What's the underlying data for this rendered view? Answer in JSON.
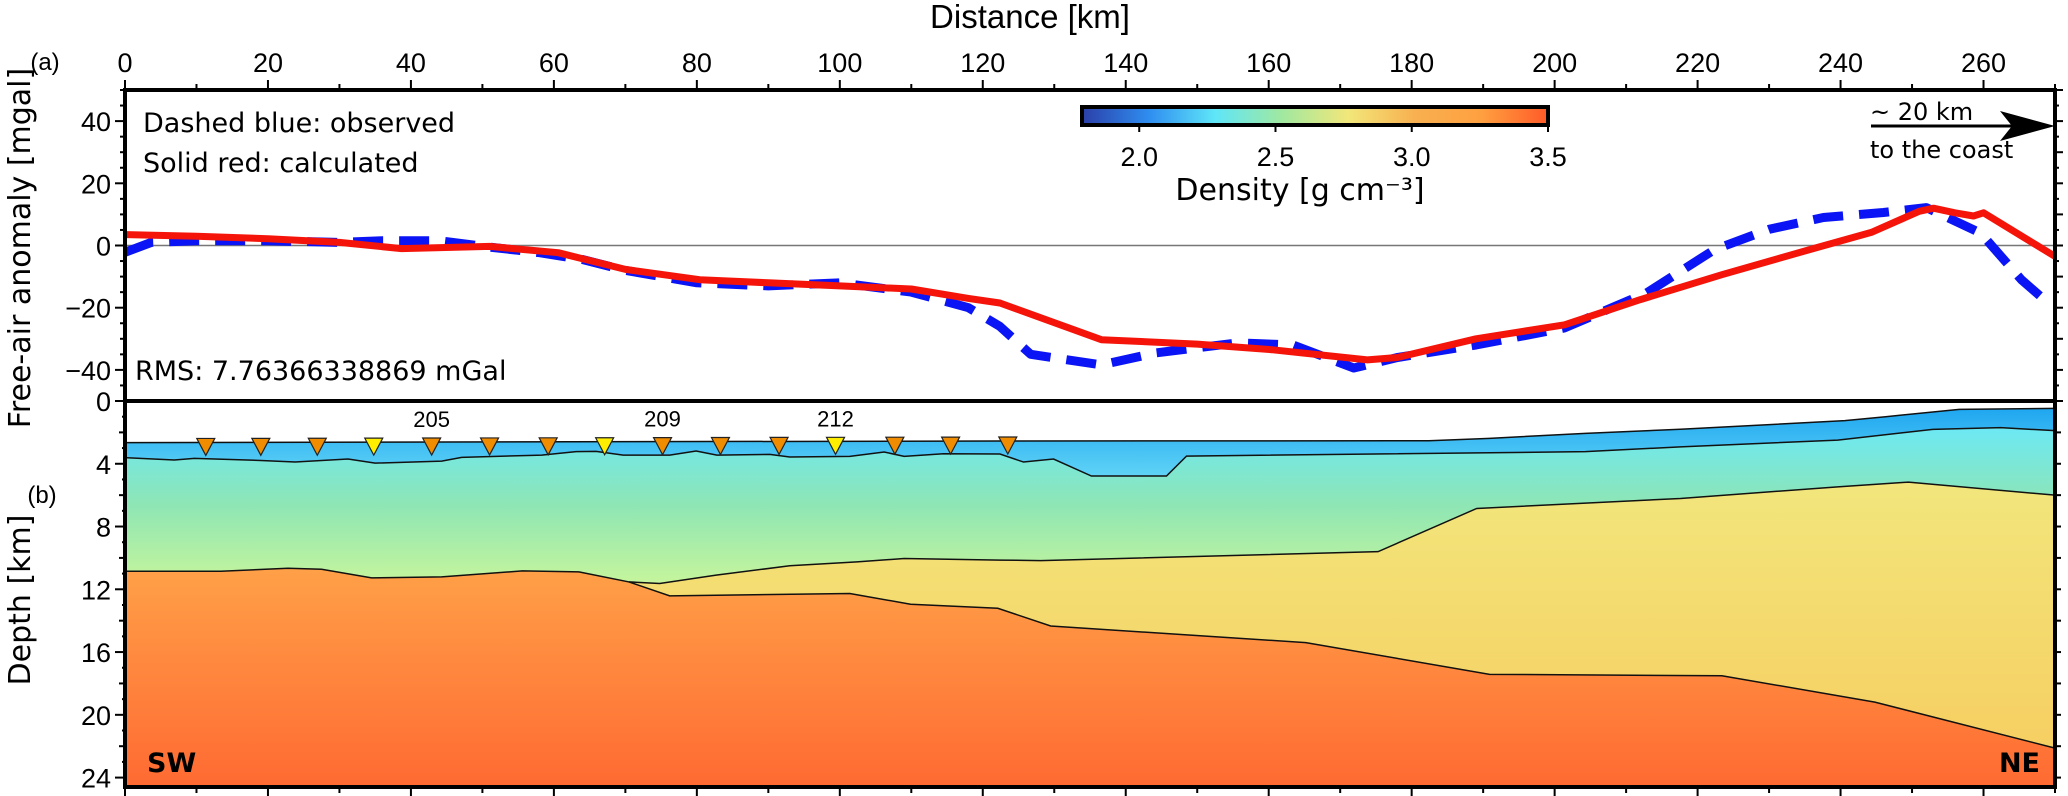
{
  "chart_data": [
    {
      "type": "line",
      "panel_label": "(a)",
      "title": "Distance [km]",
      "xlabel": "Distance [km]",
      "ylabel": "Free-air anomaly [mgal]",
      "xlim": [
        0,
        270
      ],
      "ylim": [
        -50,
        50
      ],
      "xticks": [
        0,
        20,
        40,
        60,
        80,
        100,
        120,
        140,
        160,
        180,
        200,
        220,
        240,
        260
      ],
      "yticks": [
        -40,
        -20,
        0,
        20,
        40
      ],
      "legend": [
        "Dashed blue: observed",
        "Solid red: calculated"
      ],
      "rms_text": "RMS: 7.76366338869 mGal",
      "coast_note": {
        "line1": "~ 20 km",
        "line2": "to the coast"
      },
      "series": [
        {
          "name": "observed",
          "color": "#0a14f5",
          "style": "dashed",
          "x": [
            0,
            3.7,
            10,
            20,
            30,
            36,
            44,
            51,
            58,
            64,
            70,
            80,
            90,
            100,
            110,
            118,
            122.4,
            126.7,
            136.6,
            144.3,
            155.7,
            163.4,
            171.9,
            178,
            189,
            201.4,
            212.9,
            222.4,
            230,
            237.6,
            246,
            252,
            259.6,
            265.3,
            268,
            270
          ],
          "y": [
            -2.2,
            1,
            1.5,
            1.5,
            1,
            1.5,
            1.5,
            -0.5,
            -2.3,
            -4.5,
            -8,
            -12,
            -13,
            -12,
            -15,
            -20,
            -26,
            -35,
            -38.4,
            -34.5,
            -31.3,
            -32,
            -39.4,
            -36,
            -32,
            -26.5,
            -15.2,
            -1.3,
            5.2,
            9,
            10.6,
            12.2,
            4,
            -11,
            -16.4,
            -17
          ]
        },
        {
          "name": "calculated",
          "color": "#f5140a",
          "style": "solid",
          "x": [
            0,
            10,
            20,
            30,
            38.7,
            51,
            60.6,
            70,
            80.4,
            90,
            100,
            110,
            118,
            122.4,
            136.6,
            150,
            160.4,
            173.8,
            178,
            189,
            201.4,
            212,
            223.4,
            236.6,
            244.3,
            251,
            253,
            256,
            258.6,
            260,
            270
          ],
          "y": [
            3.5,
            3,
            2.2,
            1,
            -1,
            -0.3,
            -2.3,
            -7.7,
            -11,
            -12,
            -13,
            -14,
            -17,
            -18.5,
            -30.3,
            -31.7,
            -33.5,
            -36.8,
            -36,
            -30,
            -25.5,
            -17.4,
            -9.4,
            -0.7,
            4.2,
            11,
            12,
            10.5,
            9.5,
            10.5,
            -3.5
          ]
        }
      ]
    },
    {
      "type": "area",
      "panel_label": "(b)",
      "ylabel": "Depth [km]",
      "xlim": [
        0,
        270
      ],
      "ylim": [
        0,
        24.6
      ],
      "yticks": [
        0,
        4,
        8,
        12,
        16,
        20,
        24
      ],
      "left_label": "SW",
      "right_label": "NE",
      "colorbar": {
        "label": "Density [g cm⁻³]",
        "range": [
          1.79,
          3.5
        ],
        "ticks": [
          "2.0",
          "2.5",
          "3.0",
          "3.5"
        ],
        "tick_values": [
          2.0,
          2.5,
          3.0,
          3.5
        ]
      },
      "boundaries": {
        "seafloor": {
          "x": [
            0,
            122.4,
            182.4,
            190.9,
            204.3,
            217.6,
            240.6,
            246.3,
            256.6,
            270
          ],
          "d": [
            2.65,
            2.55,
            2.53,
            2.38,
            2.06,
            1.8,
            1.25,
            1.0,
            0.53,
            0.47
          ]
        },
        "layer1_base": {
          "x": [
            0,
            6.9,
            9.7,
            19,
            23.8,
            31.2,
            35,
            44.3,
            47.1,
            58.3,
            63.1,
            65.9,
            69.7,
            76.2,
            79.9,
            82.8,
            90.2,
            93,
            101.4,
            106.2,
            109,
            114.5,
            122.4,
            125.7,
            129.9,
            135.2,
            145.7,
            148.5,
            204.3,
            217.6,
            239.6,
            252.9,
            262.4,
            270
          ],
          "d": [
            3.61,
            3.76,
            3.66,
            3.79,
            3.89,
            3.7,
            3.96,
            3.83,
            3.59,
            3.45,
            3.23,
            3.21,
            3.45,
            3.45,
            3.19,
            3.45,
            3.4,
            3.57,
            3.53,
            3.25,
            3.53,
            3.36,
            3.38,
            3.89,
            3.7,
            4.78,
            4.78,
            3.51,
            3.23,
            2.92,
            2.49,
            1.81,
            1.7,
            1.89
          ]
        },
        "upper_crust_top": {
          "x": [
            70.5,
            74.8,
            82.7,
            93,
            102.4,
            109,
            122.4,
            128.1,
            175.3,
            189.1,
            217.6,
            239.6,
            249.5,
            270
          ],
          "d": [
            11.53,
            11.63,
            11.1,
            10.5,
            10.25,
            10.04,
            10.14,
            10.17,
            9.6,
            6.85,
            6.21,
            5.47,
            5.17,
            6.0
          ]
        },
        "lower_crust_top": {
          "x": [
            0,
            13.4,
            22.8,
            27.5,
            34.5,
            44.3,
            55.6,
            63.5,
            70.5,
            76.2,
            101.4,
            109.9,
            122.1,
            129.5,
            165.2,
            190.9,
            223.4,
            244.8,
            270
          ],
          "d": [
            10.85,
            10.85,
            10.66,
            10.72,
            11.27,
            11.21,
            10.83,
            10.89,
            11.53,
            12.42,
            12.27,
            12.95,
            13.21,
            14.34,
            15.4,
            17.42,
            17.51,
            19.19,
            22.12
          ]
        }
      },
      "layer_colors": {
        "layer1": [
          "#1fa6f0",
          "#5fd3f6"
        ],
        "layer2": [
          "#6ce8f4",
          "#8ee6b4",
          "#c6f59c"
        ],
        "layer3": [
          "#f2e67c",
          "#f6cf62"
        ],
        "layer4": [
          "#ffa048",
          "#ff6a32"
        ]
      },
      "stations": {
        "x": [
          11.3,
          19,
          26.9,
          34.8,
          42.9,
          51,
          59.2,
          67.1,
          75.2,
          83.3,
          91.5,
          99.4,
          107.7,
          115.5,
          123.5
        ],
        "colors": [
          "#f08c00",
          "#f08c00",
          "#f08c00",
          "#ffee00",
          "#f08c00",
          "#f08c00",
          "#f08c00",
          "#ffee00",
          "#f08c00",
          "#f08c00",
          "#f08c00",
          "#ffee00",
          "#f08c00",
          "#f08c00",
          "#f08c00"
        ],
        "labels": [
          {
            "index": 4,
            "text": "205"
          },
          {
            "index": 8,
            "text": "209"
          },
          {
            "index": 11,
            "text": "212"
          }
        ]
      }
    }
  ]
}
